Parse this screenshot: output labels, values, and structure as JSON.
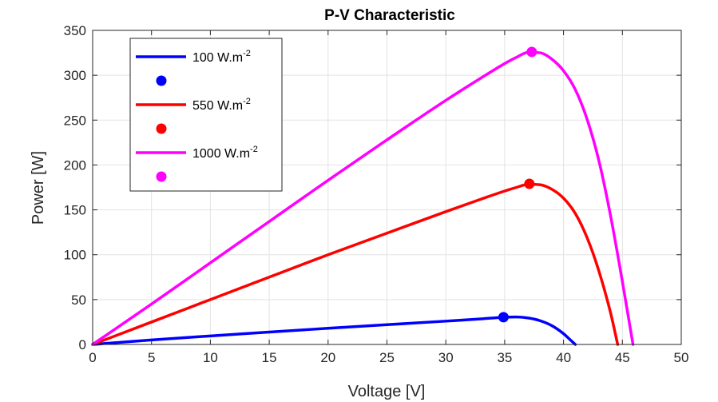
{
  "chart_data": {
    "type": "line",
    "title": "P-V Characteristic",
    "xlabel": "Voltage [V]",
    "ylabel": "Power [W]",
    "xlim": [
      0,
      50
    ],
    "ylim": [
      0,
      350
    ],
    "xticks": [
      "0",
      "5",
      "10",
      "15",
      "20",
      "25",
      "30",
      "35",
      "40",
      "45",
      "50"
    ],
    "yticks": [
      "0",
      "50",
      "100",
      "150",
      "200",
      "250",
      "300",
      "350"
    ],
    "grid": true,
    "legend_position": "top-left",
    "series": [
      {
        "name": "100 W.m",
        "name_exponent": "-2",
        "color": "#0000ff",
        "x": [
          0,
          5,
          10,
          15,
          20,
          25,
          30,
          33,
          35,
          36,
          37,
          38,
          39,
          40,
          40.5,
          41.0
        ],
        "y": [
          0,
          5,
          9.5,
          13.8,
          18,
          22,
          26,
          28.5,
          30.4,
          30.6,
          29.5,
          26.5,
          21,
          12,
          6,
          0
        ],
        "mpp": [
          34.9,
          30.4
        ]
      },
      {
        "name": "550 W.m",
        "name_exponent": "-2",
        "color": "#ff0000",
        "x": [
          0,
          5,
          10,
          15,
          20,
          25,
          30,
          33,
          35,
          36,
          37,
          38,
          39,
          40,
          41,
          42,
          43,
          44,
          44.6
        ],
        "y": [
          0,
          25,
          50,
          75,
          100,
          124,
          148,
          162,
          171,
          175,
          178.5,
          178,
          173,
          163,
          146,
          119,
          82,
          35,
          0
        ],
        "mpp": [
          37.1,
          179
        ]
      },
      {
        "name": "1000 W.m",
        "name_exponent": "-2",
        "color": "#ff00ff",
        "x": [
          0,
          5,
          10,
          15,
          20,
          25,
          30,
          33,
          35,
          36,
          37,
          38,
          39,
          40,
          41,
          42,
          43,
          44,
          45,
          45.9
        ],
        "y": [
          0,
          45,
          91,
          137,
          183,
          228,
          272,
          297,
          313,
          320,
          325.5,
          325,
          318,
          305,
          284,
          251,
          205,
          143,
          70,
          0
        ],
        "mpp": [
          37.3,
          326
        ]
      }
    ]
  }
}
